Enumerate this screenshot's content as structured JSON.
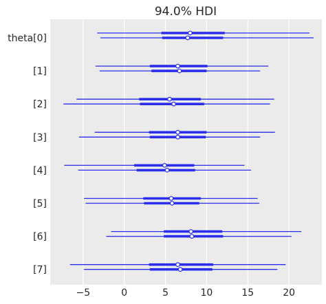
{
  "chart_data": {
    "type": "forest",
    "title": "94.0% HDI",
    "xticks": [
      -5,
      0,
      5,
      10,
      15,
      20
    ],
    "xtick_labels": [
      "−5",
      "0",
      "5",
      "10",
      "15",
      "20"
    ],
    "xlim": [
      -9,
      24
    ],
    "background": "#ebebeb",
    "grid": true,
    "line_color": "#2a2eec",
    "rows": [
      {
        "label": "theta[0]",
        "chains": [
          {
            "low": -3.3,
            "q25": 4.5,
            "median": 8.0,
            "q75": 12.2,
            "high": 22.5
          },
          {
            "low": -2.9,
            "q25": 4.6,
            "median": 7.7,
            "q75": 12.0,
            "high": 23.0
          }
        ]
      },
      {
        "label": "[1]",
        "chains": [
          {
            "low": -3.5,
            "q25": 3.1,
            "median": 6.5,
            "q75": 10.1,
            "high": 17.5
          },
          {
            "low": -3.0,
            "q25": 3.3,
            "median": 6.7,
            "q75": 10.0,
            "high": 16.5
          }
        ]
      },
      {
        "label": "[2]",
        "chains": [
          {
            "low": -5.8,
            "q25": 1.8,
            "median": 5.5,
            "q75": 9.3,
            "high": 18.2
          },
          {
            "low": -7.4,
            "q25": 1.9,
            "median": 6.0,
            "q75": 9.7,
            "high": 17.7
          }
        ]
      },
      {
        "label": "[3]",
        "chains": [
          {
            "low": -3.6,
            "q25": 3.0,
            "median": 6.5,
            "q75": 10.0,
            "high": 18.3
          },
          {
            "low": -5.5,
            "q25": 3.1,
            "median": 6.5,
            "q75": 9.9,
            "high": 16.5
          }
        ]
      },
      {
        "label": "[4]",
        "chains": [
          {
            "low": -7.3,
            "q25": 1.2,
            "median": 4.9,
            "q75": 8.5,
            "high": 14.6
          },
          {
            "low": -5.6,
            "q25": 1.5,
            "median": 5.2,
            "q75": 8.6,
            "high": 15.4
          }
        ]
      },
      {
        "label": "[5]",
        "chains": [
          {
            "low": -4.9,
            "q25": 2.3,
            "median": 5.7,
            "q75": 9.3,
            "high": 16.2
          },
          {
            "low": -4.7,
            "q25": 2.4,
            "median": 5.8,
            "q75": 9.1,
            "high": 16.4
          }
        ]
      },
      {
        "label": "[6]",
        "chains": [
          {
            "low": -1.6,
            "q25": 4.8,
            "median": 8.1,
            "q75": 11.9,
            "high": 21.5
          },
          {
            "low": -2.2,
            "q25": 4.8,
            "median": 8.2,
            "q75": 12.0,
            "high": 20.3
          }
        ]
      },
      {
        "label": "[7]",
        "chains": [
          {
            "low": -6.6,
            "q25": 3.0,
            "median": 6.5,
            "q75": 10.8,
            "high": 19.6
          },
          {
            "low": -4.9,
            "q25": 3.1,
            "median": 6.8,
            "q75": 10.7,
            "high": 18.6
          }
        ]
      }
    ]
  }
}
